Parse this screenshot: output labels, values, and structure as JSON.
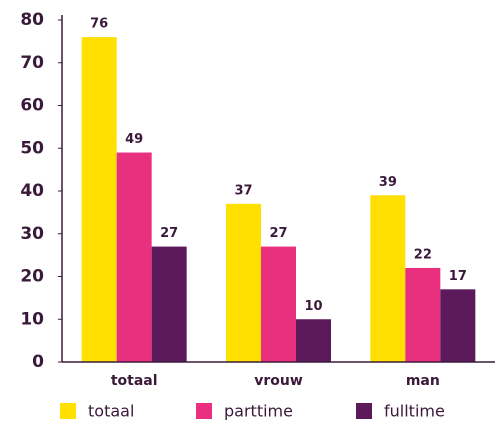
{
  "chart_data": {
    "type": "bar",
    "categories": [
      "totaal",
      "vrouw",
      "man"
    ],
    "series": [
      {
        "name": "totaal",
        "color": "#ffe000",
        "values": [
          76,
          37,
          39
        ]
      },
      {
        "name": "parttime",
        "color": "#e8307e",
        "values": [
          49,
          27,
          22
        ]
      },
      {
        "name": "fulltime",
        "color": "#5c1a5b",
        "values": [
          27,
          10,
          17
        ]
      }
    ],
    "ylim": [
      0,
      80
    ],
    "yticks": [
      0,
      10,
      20,
      30,
      40,
      50,
      60,
      70,
      80
    ],
    "grid": false
  }
}
